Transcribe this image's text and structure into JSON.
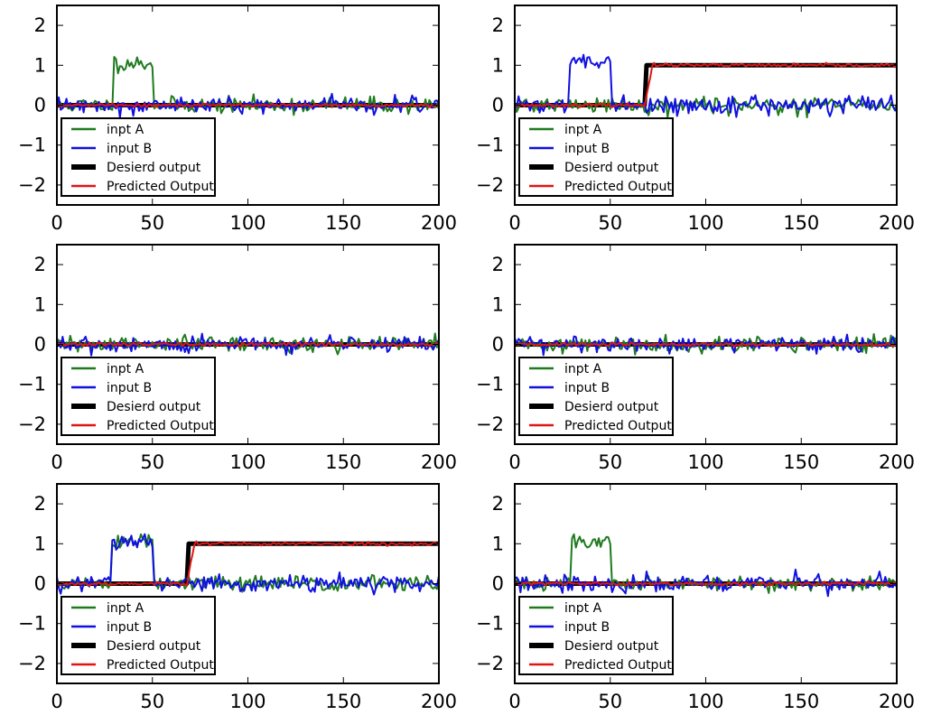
{
  "figure": {
    "rows": 3,
    "cols": 2
  },
  "colors": {
    "input_a": "#1f7a1f",
    "input_b": "#1010e0",
    "desired": "#000000",
    "predicted": "#e01515",
    "background": "#ffffff"
  },
  "chart_data": [
    {
      "type": "line",
      "xlim": [
        0,
        200
      ],
      "ylim": [
        -2.5,
        2.5
      ],
      "xticks": [
        0,
        50,
        100,
        150,
        200
      ],
      "yticks": [
        -2,
        -1,
        0,
        1,
        2
      ],
      "ytick_labels": [
        "−2",
        "−1",
        "0",
        "1",
        "2"
      ],
      "grid": false,
      "legend_position": "bottom-left",
      "series": [
        {
          "name": "inpt A",
          "key": "input_a",
          "pulses": [
            [
              30,
              50,
              1.05
            ]
          ],
          "noise": 0.1,
          "seed": 11
        },
        {
          "name": "input B",
          "key": "input_b",
          "pulses": [],
          "noise": 0.1,
          "seed": 12
        },
        {
          "name": "Desierd output",
          "key": "desired",
          "step_at": null,
          "level": 1.0
        },
        {
          "name": "Predicted Output",
          "key": "predicted",
          "step_at": null,
          "level": 1.0,
          "noise": 0.02,
          "seed": 13
        }
      ]
    },
    {
      "type": "line",
      "xlim": [
        0,
        200
      ],
      "ylim": [
        -2.5,
        2.5
      ],
      "xticks": [
        0,
        50,
        100,
        150,
        200
      ],
      "yticks": [
        -2,
        -1,
        0,
        1,
        2
      ],
      "ytick_labels": [
        "−2",
        "−1",
        "0",
        "1",
        "2"
      ],
      "grid": false,
      "legend_position": "bottom-left",
      "series": [
        {
          "name": "inpt A",
          "key": "input_a",
          "pulses": [],
          "noise": 0.1,
          "seed": 21
        },
        {
          "name": "input B",
          "key": "input_b",
          "pulses": [
            [
              29,
              50,
              1.05
            ]
          ],
          "noise": 0.1,
          "seed": 22
        },
        {
          "name": "Desierd output",
          "key": "desired",
          "step_at": 69,
          "level": 1.0
        },
        {
          "name": "Predicted Output",
          "key": "predicted",
          "step_at": 69,
          "level": 1.0,
          "noise": 0.02,
          "seed": 23
        }
      ]
    },
    {
      "type": "line",
      "xlim": [
        0,
        200
      ],
      "ylim": [
        -2.5,
        2.5
      ],
      "xticks": [
        0,
        50,
        100,
        150,
        200
      ],
      "yticks": [
        -2,
        -1,
        0,
        1,
        2
      ],
      "ytick_labels": [
        "−2",
        "−1",
        "0",
        "1",
        "2"
      ],
      "grid": false,
      "legend_position": "bottom-left",
      "series": [
        {
          "name": "inpt A",
          "key": "input_a",
          "pulses": [],
          "noise": 0.1,
          "seed": 31
        },
        {
          "name": "input B",
          "key": "input_b",
          "pulses": [],
          "noise": 0.1,
          "seed": 32
        },
        {
          "name": "Desierd output",
          "key": "desired",
          "step_at": null,
          "level": 1.0
        },
        {
          "name": "Predicted Output",
          "key": "predicted",
          "step_at": null,
          "level": 1.0,
          "noise": 0.02,
          "seed": 33
        }
      ]
    },
    {
      "type": "line",
      "xlim": [
        0,
        200
      ],
      "ylim": [
        -2.5,
        2.5
      ],
      "xticks": [
        0,
        50,
        100,
        150,
        200
      ],
      "yticks": [
        -2,
        -1,
        0,
        1,
        2
      ],
      "ytick_labels": [
        "−2",
        "−1",
        "0",
        "1",
        "2"
      ],
      "grid": false,
      "legend_position": "bottom-left",
      "series": [
        {
          "name": "inpt A",
          "key": "input_a",
          "pulses": [],
          "noise": 0.1,
          "seed": 41
        },
        {
          "name": "input B",
          "key": "input_b",
          "pulses": [],
          "noise": 0.1,
          "seed": 42
        },
        {
          "name": "Desierd output",
          "key": "desired",
          "step_at": null,
          "level": 1.0
        },
        {
          "name": "Predicted Output",
          "key": "predicted",
          "step_at": null,
          "level": 1.0,
          "noise": 0.02,
          "seed": 43
        }
      ]
    },
    {
      "type": "line",
      "xlim": [
        0,
        200
      ],
      "ylim": [
        -2.5,
        2.5
      ],
      "xticks": [
        0,
        50,
        100,
        150,
        200
      ],
      "yticks": [
        -2,
        -1,
        0,
        1,
        2
      ],
      "ytick_labels": [
        "−2",
        "−1",
        "0",
        "1",
        "2"
      ],
      "grid": false,
      "legend_position": "bottom-left",
      "series": [
        {
          "name": "inpt A",
          "key": "input_a",
          "pulses": [
            [
              29,
              50,
              1.05
            ]
          ],
          "noise": 0.1,
          "seed": 51
        },
        {
          "name": "input B",
          "key": "input_b",
          "pulses": [
            [
              29,
              50,
              1.05
            ]
          ],
          "noise": 0.1,
          "seed": 52
        },
        {
          "name": "Desierd output",
          "key": "desired",
          "step_at": 69,
          "level": 1.0
        },
        {
          "name": "Predicted Output",
          "key": "predicted",
          "step_at": 69,
          "level": 1.0,
          "noise": 0.02,
          "seed": 53
        }
      ]
    },
    {
      "type": "line",
      "xlim": [
        0,
        200
      ],
      "ylim": [
        -2.5,
        2.5
      ],
      "xticks": [
        0,
        50,
        100,
        150,
        200
      ],
      "yticks": [
        -2,
        -1,
        0,
        1,
        2
      ],
      "ytick_labels": [
        "−2",
        "−1",
        "0",
        "1",
        "2"
      ],
      "grid": false,
      "legend_position": "bottom-left",
      "series": [
        {
          "name": "inpt A",
          "key": "input_a",
          "pulses": [
            [
              30,
              50,
              1.05
            ]
          ],
          "noise": 0.1,
          "seed": 61
        },
        {
          "name": "input B",
          "key": "input_b",
          "pulses": [],
          "noise": 0.1,
          "seed": 62
        },
        {
          "name": "Desierd output",
          "key": "desired",
          "step_at": null,
          "level": 1.0
        },
        {
          "name": "Predicted Output",
          "key": "predicted",
          "step_at": null,
          "level": 1.0,
          "noise": 0.02,
          "seed": 63
        }
      ]
    }
  ]
}
